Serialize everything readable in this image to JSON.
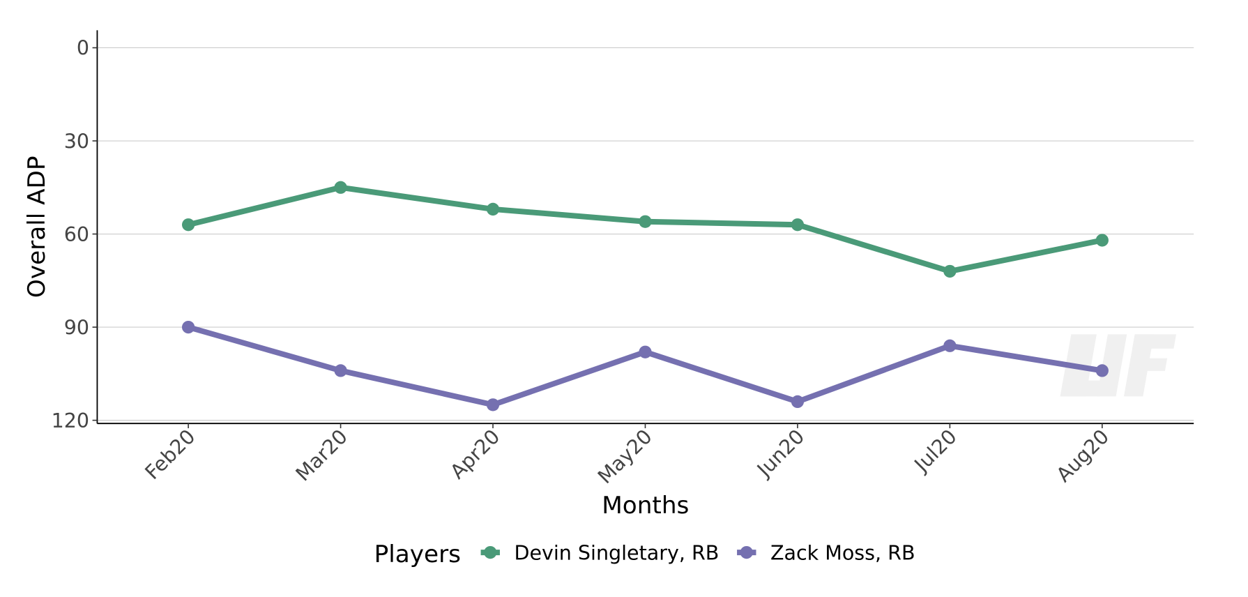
{
  "chart_data": {
    "type": "line",
    "title": "",
    "xlabel": "Months",
    "ylabel": "Overall ADP",
    "categories": [
      "Feb20",
      "Mar20",
      "Apr20",
      "May20",
      "Jun20",
      "Jul20",
      "Aug20"
    ],
    "yticks": [
      0,
      30,
      60,
      90,
      120
    ],
    "ylim": [
      0,
      120
    ],
    "y_reversed": true,
    "grid": "horizontal",
    "legend": {
      "title": "Players",
      "position": "bottom"
    },
    "series": [
      {
        "name": "Devin Singletary, RB",
        "color": "#4a9a78",
        "values": [
          57,
          45,
          52,
          56,
          57,
          72,
          62
        ]
      },
      {
        "name": "Zack Moss, RB",
        "color": "#7570b0",
        "values": [
          90,
          104,
          115,
          98,
          114,
          96,
          104
        ]
      }
    ]
  }
}
